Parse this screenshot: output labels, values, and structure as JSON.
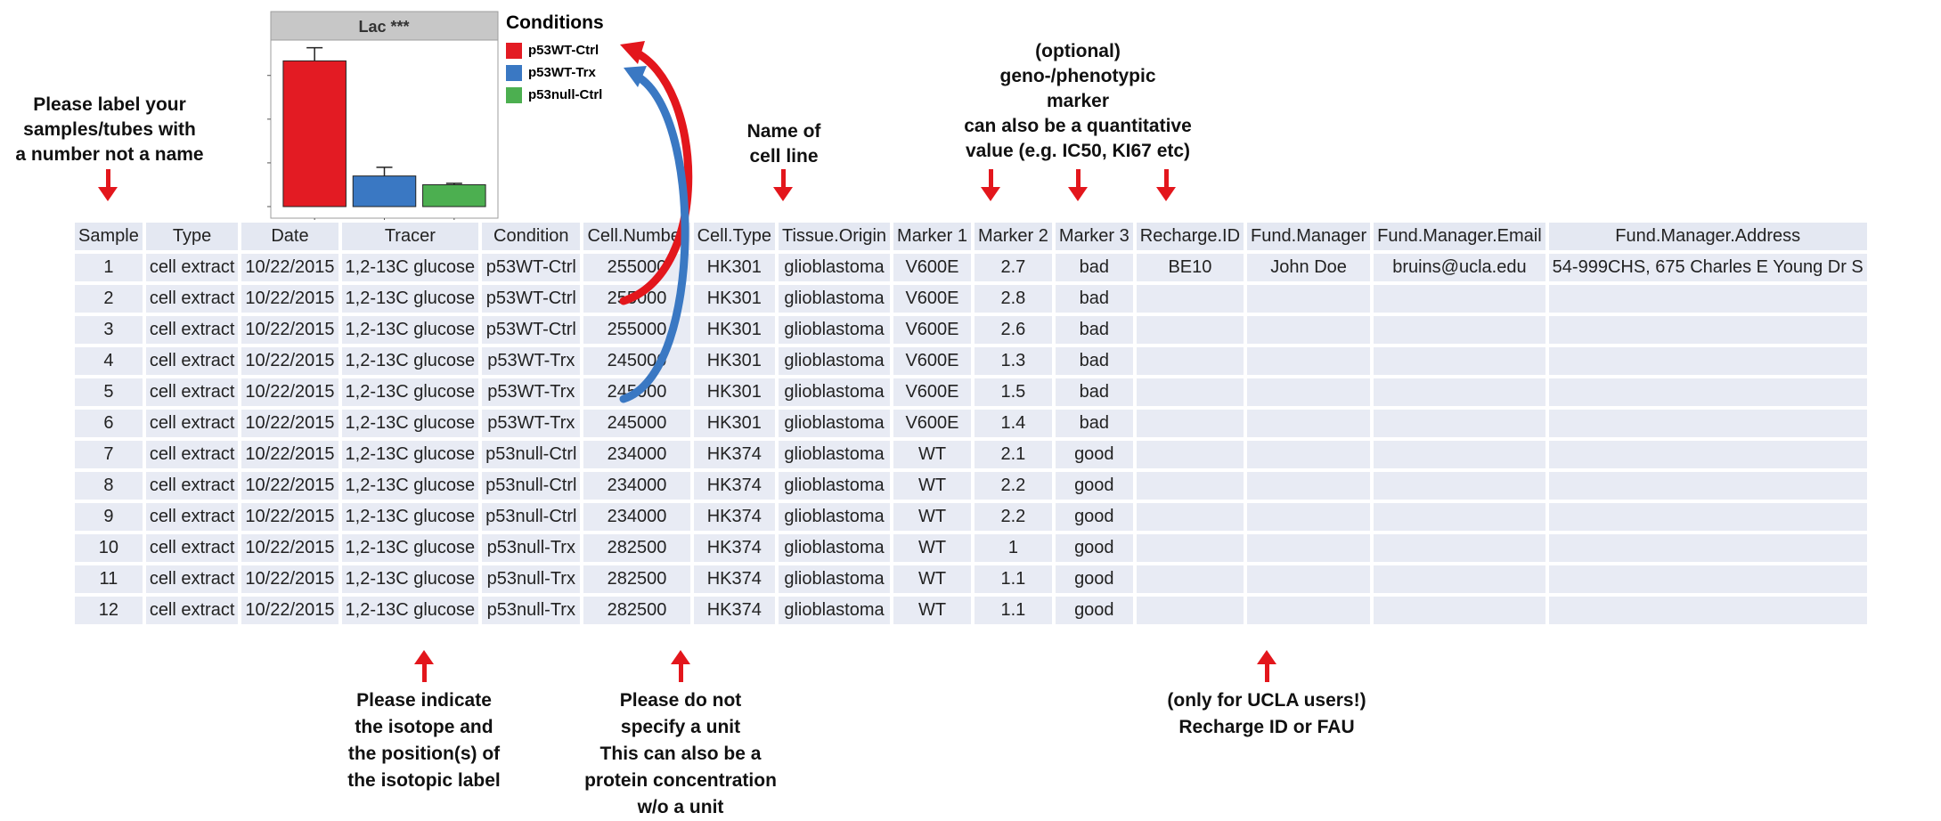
{
  "table": {
    "headers": [
      "Sample",
      "Type",
      "Date",
      "Tracer",
      "Condition",
      "Cell.Number",
      "Cell.Type",
      "Tissue.Origin",
      "Marker 1",
      "Marker 2",
      "Marker 3",
      "Recharge.ID",
      "Fund.Manager",
      "Fund.Manager.Email",
      "Fund.Manager.Address"
    ],
    "rows": [
      [
        "1",
        "cell extract",
        "10/22/2015",
        "1,2-13C glucose",
        "p53WT-Ctrl",
        "255000",
        "HK301",
        "glioblastoma",
        "V600E",
        "2.7",
        "bad",
        "BE10",
        "John Doe",
        "bruins@ucla.edu",
        "54-999CHS, 675 Charles E Young Dr S"
      ],
      [
        "2",
        "cell extract",
        "10/22/2015",
        "1,2-13C glucose",
        "p53WT-Ctrl",
        "255000",
        "HK301",
        "glioblastoma",
        "V600E",
        "2.8",
        "bad",
        "",
        "",
        "",
        ""
      ],
      [
        "3",
        "cell extract",
        "10/22/2015",
        "1,2-13C glucose",
        "p53WT-Ctrl",
        "255000",
        "HK301",
        "glioblastoma",
        "V600E",
        "2.6",
        "bad",
        "",
        "",
        "",
        ""
      ],
      [
        "4",
        "cell extract",
        "10/22/2015",
        "1,2-13C glucose",
        "p53WT-Trx",
        "245000",
        "HK301",
        "glioblastoma",
        "V600E",
        "1.3",
        "bad",
        "",
        "",
        "",
        ""
      ],
      [
        "5",
        "cell extract",
        "10/22/2015",
        "1,2-13C glucose",
        "p53WT-Trx",
        "245000",
        "HK301",
        "glioblastoma",
        "V600E",
        "1.5",
        "bad",
        "",
        "",
        "",
        ""
      ],
      [
        "6",
        "cell extract",
        "10/22/2015",
        "1,2-13C glucose",
        "p53WT-Trx",
        "245000",
        "HK301",
        "glioblastoma",
        "V600E",
        "1.4",
        "bad",
        "",
        "",
        "",
        ""
      ],
      [
        "7",
        "cell extract",
        "10/22/2015",
        "1,2-13C glucose",
        "p53null-Ctrl",
        "234000",
        "HK374",
        "glioblastoma",
        "WT",
        "2.1",
        "good",
        "",
        "",
        "",
        ""
      ],
      [
        "8",
        "cell extract",
        "10/22/2015",
        "1,2-13C glucose",
        "p53null-Ctrl",
        "234000",
        "HK374",
        "glioblastoma",
        "WT",
        "2.2",
        "good",
        "",
        "",
        "",
        ""
      ],
      [
        "9",
        "cell extract",
        "10/22/2015",
        "1,2-13C glucose",
        "p53null-Ctrl",
        "234000",
        "HK374",
        "glioblastoma",
        "WT",
        "2.2",
        "good",
        "",
        "",
        "",
        ""
      ],
      [
        "10",
        "cell extract",
        "10/22/2015",
        "1,2-13C glucose",
        "p53null-Trx",
        "282500",
        "HK374",
        "glioblastoma",
        "WT",
        "1",
        "good",
        "",
        "",
        "",
        ""
      ],
      [
        "11",
        "cell extract",
        "10/22/2015",
        "1,2-13C glucose",
        "p53null-Trx",
        "282500",
        "HK374",
        "glioblastoma",
        "WT",
        "1.1",
        "good",
        "",
        "",
        "",
        ""
      ],
      [
        "12",
        "cell extract",
        "10/22/2015",
        "1,2-13C glucose",
        "p53null-Trx",
        "282500",
        "HK374",
        "glioblastoma",
        "WT",
        "1.1",
        "good",
        "",
        "",
        "",
        ""
      ]
    ]
  },
  "annotations": {
    "sample": [
      "Please label your",
      "samples/tubes with",
      "a number not a name"
    ],
    "cell_type": [
      "Name of",
      "cell line"
    ],
    "marker": [
      "(optional)",
      "geno-/phenotypic",
      "marker",
      "can also be a quantitative",
      "value (e.g. IC50, KI67 etc)"
    ],
    "tracer": [
      "Please indicate",
      "the isotope and",
      "the position(s) of",
      "the isotopic label"
    ],
    "cell_number": [
      "Please do not",
      "specify a unit",
      "This can also be a",
      "protein concentration",
      "w/o a unit"
    ],
    "recharge": [
      "(only for UCLA users!)",
      "Recharge ID or FAU"
    ]
  },
  "legend": {
    "title": "Conditions",
    "items": [
      {
        "label": "p53WT-Ctrl",
        "color": "#e31b23"
      },
      {
        "label": "p53WT-Trx",
        "color": "#3a78c3"
      },
      {
        "label": "p53null-Ctrl",
        "color": "#4caf50"
      }
    ]
  },
  "colors": {
    "arrow": "#e3161c",
    "red_curve": "#e3161c",
    "blue_curve": "#3a78c3",
    "table_cell": "#e8ebf4",
    "panel_header": "#c7c7c7"
  },
  "chart_data": {
    "type": "bar",
    "title": "Lac ***",
    "categories": [
      "p53WT-Ctrl",
      "p53WT-Trx",
      "p53null-Ctrl"
    ],
    "values": [
      1.0,
      0.21,
      0.15
    ],
    "errors": [
      0.09,
      0.06,
      0.01
    ],
    "colors": [
      "#e31b23",
      "#3a78c3",
      "#4caf50"
    ],
    "ylim": [
      0,
      1.1
    ],
    "yticks": [
      "0.0",
      "0.3",
      "0.6",
      "0.9"
    ],
    "ytick_values": [
      0,
      0.3,
      0.6,
      0.9
    ],
    "xlabel": "",
    "ylabel": "",
    "legend": "right",
    "grid": false
  }
}
